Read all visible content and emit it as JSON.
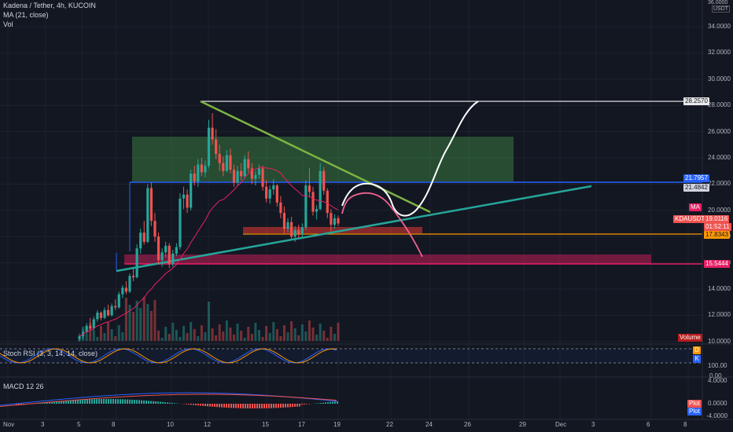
{
  "header": {
    "title": "Kadena / Tether, 4h, KUCOIN",
    "ma_label": "MA (21, close)",
    "vol_label": "Vol"
  },
  "currency": {
    "symbol": "USDT",
    "top_value": "36.0000"
  },
  "price_axis": {
    "labels": [
      "34.0000",
      "32.0000",
      "30.0000",
      "28.0000",
      "26.0000",
      "24.0000",
      "22.0000",
      "20.0000",
      "18.0000",
      "16.0000",
      "14.0000",
      "12.0000",
      "10.0000"
    ]
  },
  "price_tags": {
    "p1": "28.2570",
    "p2": "21.7957",
    "p3": "21.4842",
    "ma_badge": "MA",
    "symbol": "KDAUSDT",
    "last": "19.0116",
    "countdown": "01:52:11",
    "p4": "17.8343",
    "p5": "15.5444",
    "volume": "Volume"
  },
  "stoch": {
    "label": "Stoch RSI (3, 3, 14, 14, close)",
    "axis": [
      "100.00",
      "0.00"
    ],
    "tag_d": "D",
    "tag_k": "K"
  },
  "macd": {
    "label": "MACD 12 26",
    "axis": [
      "4.0000",
      "0.0000",
      "-4.0000"
    ],
    "tag_plot1": "Plot",
    "tag_plot2": "Plot"
  },
  "time_axis": {
    "labels": [
      "Nov",
      "3",
      "5",
      "8",
      "10",
      "12",
      "15",
      "17",
      "19",
      "22",
      "24",
      "26",
      "29",
      "Dec",
      "3",
      "6",
      "8"
    ]
  },
  "colors": {
    "up": "#26a69a",
    "down": "#ef5350",
    "ma": "#e91e63",
    "green_line": "#7cb342",
    "teal_line": "#26a69a",
    "blue_line": "#2962ff",
    "orange_line": "#ff9800",
    "pink_zone": "#e91e63",
    "green_box": "#4caf50"
  },
  "chart_data": {
    "type": "candlestick",
    "symbol": "KDAUSDT",
    "timeframe": "4h",
    "exchange": "KUCOIN",
    "x_axis_ticks": [
      "Nov",
      "3",
      "5",
      "8",
      "10",
      "12",
      "15",
      "17",
      "19",
      "22",
      "24",
      "26",
      "29",
      "Dec",
      "3",
      "6",
      "8"
    ],
    "ylim": [
      9.5,
      36
    ],
    "annotated_levels": [
      28.257,
      21.7957,
      21.4842,
      19.0116,
      17.8343,
      15.5444
    ],
    "candles_ohlc": [
      [
        10.2,
        10.6,
        10.0,
        10.4
      ],
      [
        10.4,
        10.9,
        10.2,
        10.7
      ],
      [
        10.7,
        11.4,
        10.6,
        11.2
      ],
      [
        11.2,
        11.8,
        10.9,
        11.0
      ],
      [
        11.0,
        11.9,
        10.9,
        11.7
      ],
      [
        11.7,
        12.4,
        11.5,
        12.2
      ],
      [
        12.2,
        12.3,
        11.6,
        11.8
      ],
      [
        11.8,
        12.6,
        11.7,
        12.4
      ],
      [
        12.4,
        12.8,
        11.9,
        12.0
      ],
      [
        12.0,
        12.9,
        11.9,
        12.7
      ],
      [
        12.7,
        13.2,
        12.4,
        12.6
      ],
      [
        12.6,
        13.8,
        12.5,
        13.6
      ],
      [
        13.6,
        14.3,
        13.3,
        14.1
      ],
      [
        14.1,
        14.6,
        13.6,
        13.8
      ],
      [
        13.8,
        15.2,
        13.7,
        15.0
      ],
      [
        15.0,
        15.6,
        14.6,
        14.9
      ],
      [
        14.9,
        17.4,
        14.8,
        17.1
      ],
      [
        17.1,
        18.6,
        16.7,
        18.3
      ],
      [
        18.3,
        19.2,
        17.4,
        17.6
      ],
      [
        17.6,
        22.0,
        17.5,
        21.7
      ],
      [
        21.7,
        22.1,
        18.8,
        19.2
      ],
      [
        19.2,
        19.8,
        17.6,
        18.0
      ],
      [
        18.0,
        18.3,
        15.9,
        16.2
      ],
      [
        16.2,
        17.1,
        15.7,
        16.8
      ],
      [
        16.8,
        17.6,
        16.4,
        17.3
      ],
      [
        17.3,
        17.5,
        15.6,
        15.9
      ],
      [
        15.9,
        17.0,
        15.7,
        16.7
      ],
      [
        16.7,
        17.5,
        16.5,
        17.2
      ],
      [
        17.2,
        21.3,
        17.0,
        20.9
      ],
      [
        20.9,
        21.8,
        20.1,
        21.2
      ],
      [
        21.2,
        21.6,
        19.8,
        20.2
      ],
      [
        20.2,
        23.1,
        20.0,
        22.8
      ],
      [
        22.8,
        23.4,
        21.9,
        22.2
      ],
      [
        22.2,
        23.9,
        21.8,
        23.5
      ],
      [
        23.5,
        24.0,
        22.6,
        22.9
      ],
      [
        22.9,
        23.8,
        22.5,
        23.4
      ],
      [
        23.4,
        26.9,
        23.2,
        26.3
      ],
      [
        26.3,
        27.4,
        25.0,
        25.4
      ],
      [
        25.4,
        26.2,
        23.9,
        24.3
      ],
      [
        24.3,
        25.0,
        23.0,
        23.6
      ],
      [
        23.6,
        24.1,
        22.6,
        23.0
      ],
      [
        23.0,
        24.6,
        22.9,
        24.2
      ],
      [
        24.2,
        24.7,
        22.8,
        23.1
      ],
      [
        23.1,
        23.5,
        21.8,
        22.1
      ],
      [
        22.1,
        23.4,
        21.9,
        23.0
      ],
      [
        23.0,
        23.6,
        22.3,
        22.6
      ],
      [
        22.6,
        24.2,
        22.4,
        23.9
      ],
      [
        23.9,
        24.5,
        22.9,
        23.2
      ],
      [
        23.2,
        23.6,
        22.0,
        22.4
      ],
      [
        22.4,
        23.0,
        21.9,
        22.7
      ],
      [
        22.7,
        23.5,
        22.4,
        23.2
      ],
      [
        23.2,
        23.4,
        21.5,
        21.8
      ],
      [
        21.8,
        22.3,
        20.6,
        20.9
      ],
      [
        20.9,
        21.9,
        20.5,
        21.6
      ],
      [
        21.6,
        22.4,
        21.2,
        21.9
      ],
      [
        21.9,
        22.0,
        20.3,
        20.6
      ],
      [
        20.6,
        21.1,
        19.4,
        19.8
      ],
      [
        19.8,
        20.3,
        18.2,
        18.6
      ],
      [
        18.6,
        19.4,
        18.3,
        19.1
      ],
      [
        19.1,
        19.5,
        17.7,
        18.0
      ],
      [
        18.0,
        18.8,
        17.6,
        18.5
      ],
      [
        18.5,
        18.9,
        17.9,
        18.2
      ],
      [
        18.2,
        19.0,
        17.9,
        18.7
      ],
      [
        18.7,
        22.3,
        18.5,
        21.9
      ],
      [
        21.9,
        23.2,
        21.0,
        21.4
      ],
      [
        21.4,
        21.8,
        19.6,
        19.9
      ],
      [
        19.9,
        20.4,
        19.3,
        20.1
      ],
      [
        20.1,
        23.6,
        20.0,
        23.0
      ],
      [
        23.0,
        23.3,
        21.2,
        21.5
      ],
      [
        21.5,
        21.7,
        19.4,
        19.8
      ],
      [
        19.8,
        20.1,
        18.4,
        18.9
      ],
      [
        18.9,
        19.7,
        18.6,
        19.4
      ],
      [
        19.4,
        19.6,
        18.8,
        19.0
      ]
    ],
    "stoch_rsi_ylim": [
      0,
      100
    ],
    "macd_ylim": [
      -4,
      4
    ]
  }
}
